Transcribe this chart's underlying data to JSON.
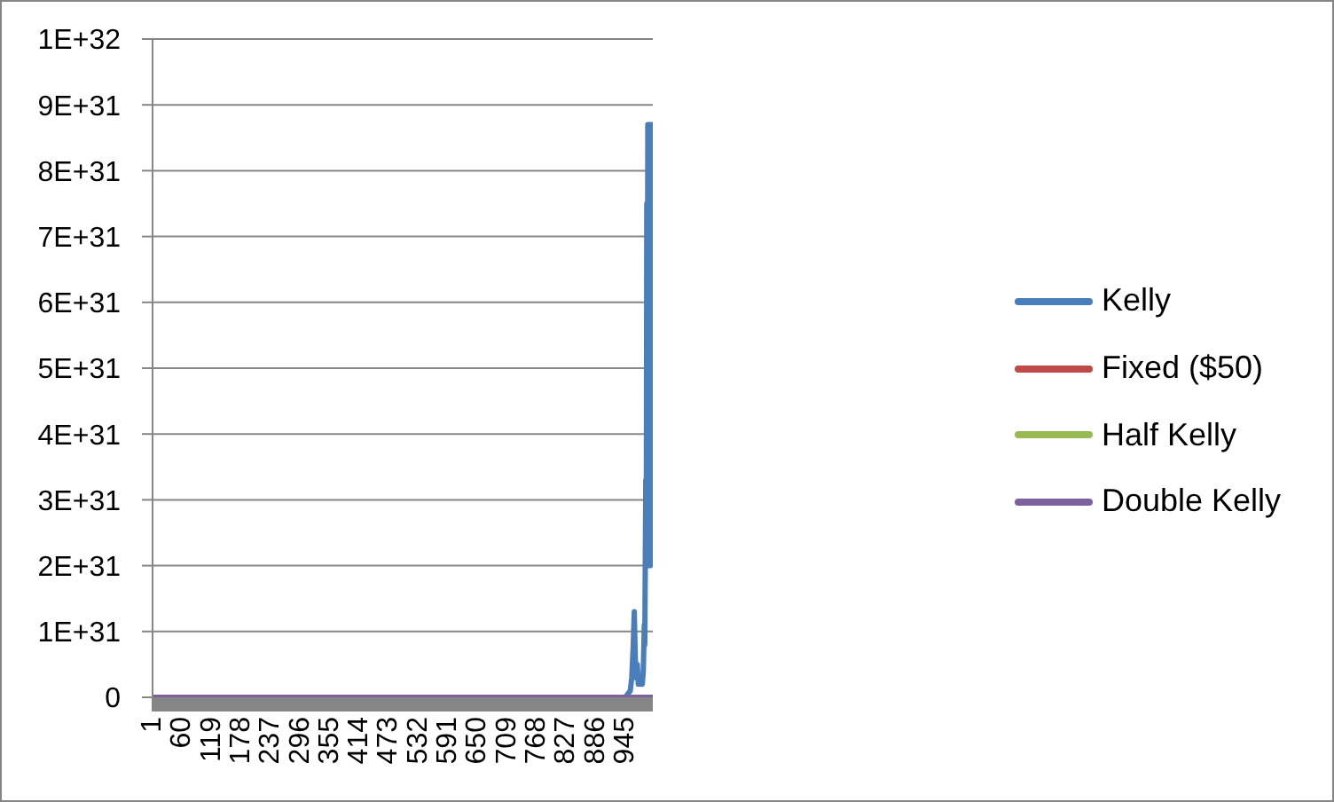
{
  "chart_data": {
    "type": "line",
    "x": [
      1,
      1000
    ],
    "xlim": [
      1,
      1000
    ],
    "xticks": [
      1,
      60,
      119,
      178,
      237,
      296,
      355,
      414,
      473,
      532,
      591,
      650,
      709,
      768,
      827,
      886,
      945
    ],
    "ylim": [
      0,
      1e+32
    ],
    "yticks": [
      0,
      {
        "value": 1e+31,
        "label": "1E+31"
      },
      {
        "value": 2e+31,
        "label": "2E+31"
      },
      {
        "value": 3e+31,
        "label": "3E+31"
      },
      {
        "value": 4e+31,
        "label": "4E+31"
      },
      {
        "value": 5e+31,
        "label": "5E+31"
      },
      {
        "value": 6e+31,
        "label": "6E+31"
      },
      {
        "value": 7e+31,
        "label": "7E+31"
      },
      {
        "value": 8e+31,
        "label": "8E+31"
      },
      {
        "value": 9e+31,
        "label": "9E+31"
      },
      {
        "value": 1e+32,
        "label": "1E+32"
      }
    ],
    "grid": "y",
    "legend": "right",
    "series": [
      {
        "name": "Kelly",
        "color": "#4a7ebb",
        "x": [
          1,
          945,
          955,
          958,
          961,
          963,
          965,
          967,
          969,
          971,
          973,
          975,
          977,
          979,
          981,
          983,
          984,
          986,
          987,
          988,
          989,
          990,
          991,
          992,
          993,
          994,
          995,
          996,
          997,
          998,
          1000
        ],
        "values": [
          0,
          0,
          1e+30,
          3e+30,
          8e+30,
          1.3e+31,
          6e+30,
          3e+30,
          5e+30,
          2e+30,
          3e+30,
          2e+30,
          3e+30,
          2e+30,
          4e+30,
          1.1e+31,
          8e+30,
          3.3e+31,
          2.5e+31,
          7.5e+31,
          3e+31,
          8.7e+31,
          2e+31,
          8.7e+31,
          5.7e+31,
          8.7e+31,
          2e+31,
          8.7e+31,
          6e+31,
          8.7e+31,
          2e+31
        ]
      },
      {
        "name": "Fixed ($50)",
        "color": "#be4b48",
        "values": [
          null,
          null
        ]
      },
      {
        "name": "Half Kelly",
        "color": "#98b954",
        "values": [
          null,
          null
        ]
      },
      {
        "name": "Double Kelly",
        "color": "#7d60a0",
        "values": [
          0,
          0
        ]
      }
    ]
  }
}
